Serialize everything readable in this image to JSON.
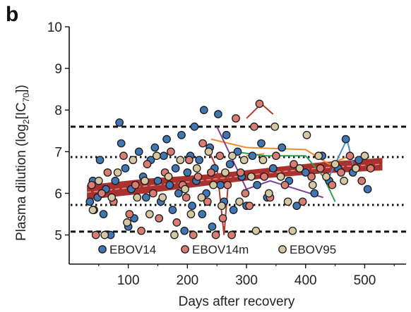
{
  "panel_label": "b",
  "chart_data": {
    "type": "scatter",
    "xlabel": "Days after recovery",
    "ylabel": {
      "prefix": "Plasma dilution (log",
      "sub1": "2",
      "mid": "[IC",
      "sub2": "70",
      "suffix": "])"
    },
    "xlim": [
      0,
      570
    ],
    "ylim": [
      4.3,
      10
    ],
    "x_ticks": [
      100,
      200,
      300,
      400,
      500
    ],
    "y_ticks": [
      5,
      6,
      7,
      8,
      9,
      10
    ],
    "reference_lines": [
      {
        "y": 7.6,
        "style": "dashed"
      },
      {
        "y": 6.87,
        "style": "dotted"
      },
      {
        "y": 5.72,
        "style": "dotted"
      },
      {
        "y": 5.08,
        "style": "dashed"
      }
    ],
    "trend_band": {
      "x": [
        30,
        130,
        230,
        330,
        430,
        530
      ],
      "lower": [
        5.85,
        6.0,
        6.18,
        6.36,
        6.48,
        6.55
      ],
      "upper": [
        6.2,
        6.35,
        6.45,
        6.6,
        6.75,
        6.85
      ],
      "color": "#a3201c"
    },
    "highlight_lines": [
      {
        "color": "#b33a2e",
        "points": [
          [
            230,
            7.2
          ],
          [
            250,
            6.6
          ],
          [
            262,
            5.0
          ],
          [
            270,
            6.4
          ]
        ]
      },
      {
        "color": "#b33a2e",
        "points": [
          [
            300,
            7.8
          ],
          [
            325,
            8.15
          ],
          [
            345,
            7.9
          ]
        ]
      },
      {
        "color": "#f08a2b",
        "points": [
          [
            240,
            7.3
          ],
          [
            300,
            7.1
          ],
          [
            400,
            7.05
          ],
          [
            440,
            6.7
          ],
          [
            475,
            6.9
          ]
        ]
      },
      {
        "color": "#f08a2b",
        "points": [
          [
            300,
            6.9
          ],
          [
            330,
            6.95
          ]
        ]
      },
      {
        "color": "#7b3fa0",
        "points": [
          [
            250,
            7.6
          ],
          [
            270,
            7.0
          ],
          [
            300,
            6.1
          ],
          [
            340,
            6.3
          ],
          [
            430,
            5.9
          ]
        ]
      },
      {
        "color": "#2e9e4f",
        "points": [
          [
            280,
            7.0
          ],
          [
            330,
            6.9
          ],
          [
            400,
            6.9
          ],
          [
            430,
            6.4
          ],
          [
            450,
            5.8
          ]
        ]
      },
      {
        "color": "#4a8ec8",
        "points": [
          [
            440,
            6.4
          ],
          [
            470,
            7.3
          ],
          [
            480,
            6.7
          ]
        ]
      }
    ],
    "series": [
      {
        "name": "EBOV14",
        "color": "#3f76b3",
        "points": [
          [
            35,
            5.8
          ],
          [
            40,
            6.3
          ],
          [
            42,
            5.6
          ],
          [
            48,
            5.9
          ],
          [
            52,
            6.8
          ],
          [
            58,
            5.5
          ],
          [
            62,
            6.1
          ],
          [
            70,
            5.0
          ],
          [
            78,
            6.3
          ],
          [
            85,
            7.7
          ],
          [
            88,
            7.2
          ],
          [
            95,
            6.6
          ],
          [
            100,
            5.2
          ],
          [
            105,
            6.1
          ],
          [
            110,
            5.4
          ],
          [
            118,
            7.0
          ],
          [
            125,
            6.4
          ],
          [
            130,
            5.9
          ],
          [
            138,
            6.8
          ],
          [
            145,
            7.1
          ],
          [
            150,
            6.3
          ],
          [
            155,
            5.8
          ],
          [
            160,
            6.9
          ],
          [
            165,
            7.3
          ],
          [
            170,
            6.2
          ],
          [
            175,
            5.6
          ],
          [
            180,
            6.6
          ],
          [
            185,
            6.0
          ],
          [
            190,
            7.4
          ],
          [
            195,
            5.1
          ],
          [
            200,
            6.5
          ],
          [
            205,
            6.9
          ],
          [
            208,
            5.7
          ],
          [
            212,
            7.6
          ],
          [
            215,
            6.3
          ],
          [
            220,
            6.8
          ],
          [
            225,
            5.5
          ],
          [
            228,
            8.0
          ],
          [
            232,
            6.0
          ],
          [
            238,
            7.1
          ],
          [
            242,
            5.2
          ],
          [
            246,
            6.6
          ],
          [
            252,
            7.9
          ],
          [
            256,
            6.2
          ],
          [
            262,
            5.8
          ],
          [
            266,
            7.4
          ],
          [
            272,
            6.7
          ],
          [
            278,
            5.6
          ],
          [
            285,
            7.0
          ],
          [
            292,
            6.4
          ],
          [
            300,
            5.7
          ],
          [
            310,
            6.9
          ],
          [
            318,
            6.2
          ],
          [
            325,
            7.2
          ],
          [
            335,
            5.9
          ],
          [
            345,
            6.6
          ],
          [
            360,
            7.1
          ],
          [
            372,
            6.3
          ],
          [
            385,
            5.7
          ],
          [
            400,
            6.5
          ],
          [
            415,
            6.0
          ],
          [
            428,
            6.9
          ],
          [
            440,
            6.3
          ],
          [
            455,
            6.6
          ],
          [
            468,
            7.3
          ],
          [
            480,
            6.5
          ],
          [
            490,
            6.8
          ],
          [
            505,
            6.1
          ]
        ]
      },
      {
        "name": "EBOV14m",
        "color": "#d97d73",
        "points": [
          [
            38,
            6.2
          ],
          [
            45,
            5.0
          ],
          [
            55,
            6.0
          ],
          [
            65,
            6.5
          ],
          [
            75,
            5.8
          ],
          [
            92,
            6.9
          ],
          [
            102,
            5.5
          ],
          [
            112,
            6.2
          ],
          [
            122,
            5.1
          ],
          [
            132,
            6.7
          ],
          [
            142,
            6.0
          ],
          [
            152,
            5.4
          ],
          [
            162,
            6.5
          ],
          [
            172,
            7.0
          ],
          [
            182,
            5.3
          ],
          [
            192,
            6.2
          ],
          [
            198,
            5.9
          ],
          [
            203,
            6.8
          ],
          [
            210,
            5.0
          ],
          [
            218,
            6.4
          ],
          [
            226,
            7.2
          ],
          [
            234,
            5.8
          ],
          [
            240,
            6.5
          ],
          [
            248,
            5.0
          ],
          [
            255,
            6.9
          ],
          [
            260,
            5.4
          ],
          [
            268,
            6.2
          ],
          [
            275,
            5.0
          ],
          [
            282,
            7.8
          ],
          [
            290,
            6.5
          ],
          [
            298,
            6.0
          ],
          [
            305,
            5.7
          ],
          [
            313,
            7.6
          ],
          [
            322,
            8.15
          ],
          [
            330,
            6.4
          ],
          [
            340,
            5.9
          ],
          [
            350,
            6.9
          ],
          [
            365,
            6.2
          ],
          [
            380,
            6.7
          ],
          [
            395,
            5.8
          ],
          [
            410,
            6.4
          ],
          [
            425,
            6.6
          ],
          [
            445,
            6.2
          ],
          [
            460,
            6.5
          ],
          [
            475,
            6.9
          ],
          [
            495,
            6.3
          ],
          [
            510,
            6.6
          ]
        ]
      },
      {
        "name": "EBOV95",
        "color": "#d4c7a1",
        "points": [
          [
            40,
            5.6
          ],
          [
            50,
            6.3
          ],
          [
            60,
            5.0
          ],
          [
            72,
            5.9
          ],
          [
            82,
            6.5
          ],
          [
            98,
            5.3
          ],
          [
            108,
            6.8
          ],
          [
            115,
            5.9
          ],
          [
            128,
            6.3
          ],
          [
            136,
            5.5
          ],
          [
            148,
            6.9
          ],
          [
            158,
            5.9
          ],
          [
            168,
            6.4
          ],
          [
            178,
            5.0
          ],
          [
            188,
            6.8
          ],
          [
            196,
            6.1
          ],
          [
            206,
            5.5
          ],
          [
            216,
            6.6
          ],
          [
            224,
            5.9
          ],
          [
            236,
            7.0
          ],
          [
            244,
            6.2
          ],
          [
            258,
            5.7
          ],
          [
            264,
            6.5
          ],
          [
            276,
            6.9
          ],
          [
            288,
            5.8
          ],
          [
            296,
            6.8
          ],
          [
            308,
            6.4
          ],
          [
            316,
            5.1
          ],
          [
            328,
            6.8
          ],
          [
            338,
            6.0
          ],
          [
            348,
            7.6
          ],
          [
            358,
            6.4
          ],
          [
            370,
            5.8
          ],
          [
            378,
            5.1
          ],
          [
            390,
            6.6
          ],
          [
            402,
            7.4
          ],
          [
            412,
            6.2
          ],
          [
            422,
            6.9
          ],
          [
            435,
            6.4
          ],
          [
            450,
            6.7
          ],
          [
            465,
            6.3
          ],
          [
            485,
            6.6
          ],
          [
            500,
            6.9
          ]
        ]
      }
    ]
  }
}
